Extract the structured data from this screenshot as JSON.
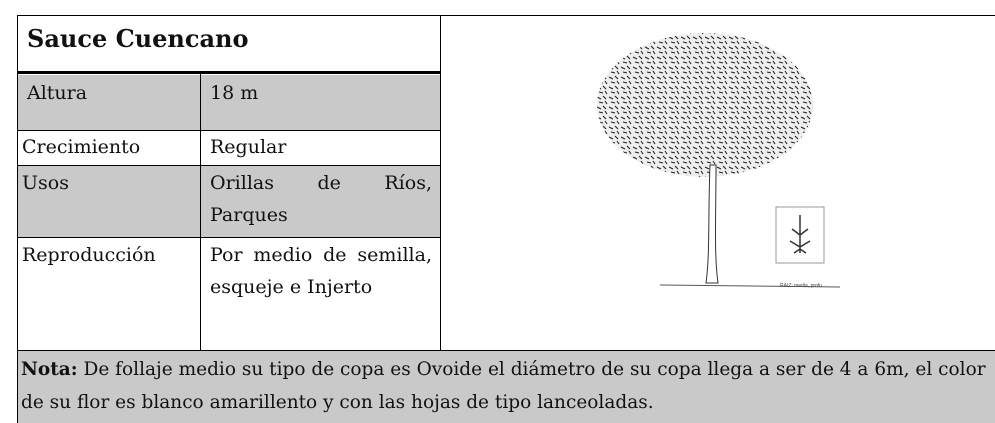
{
  "header": {
    "title": "Sauce Cuencano"
  },
  "table": {
    "rows": [
      [
        "Altura",
        "18 m"
      ],
      [
        "Crecimiento",
        "Regular"
      ],
      [
        "Usos",
        "Orillas de Ríos, Parques"
      ],
      [
        "Reproducción",
        "Por medio de semilla, esqueje e Injerto"
      ]
    ]
  },
  "image": {
    "caption": "RAIZ: media, profu"
  },
  "nota": {
    "label": "Nota:",
    "text": "De follaje medio su tipo de copa es Ovoide el diámetro de su copa llega a ser de 4 a 6m, el color de su flor es blanco amarillento y con las hojas de tipo lanceoladas."
  }
}
